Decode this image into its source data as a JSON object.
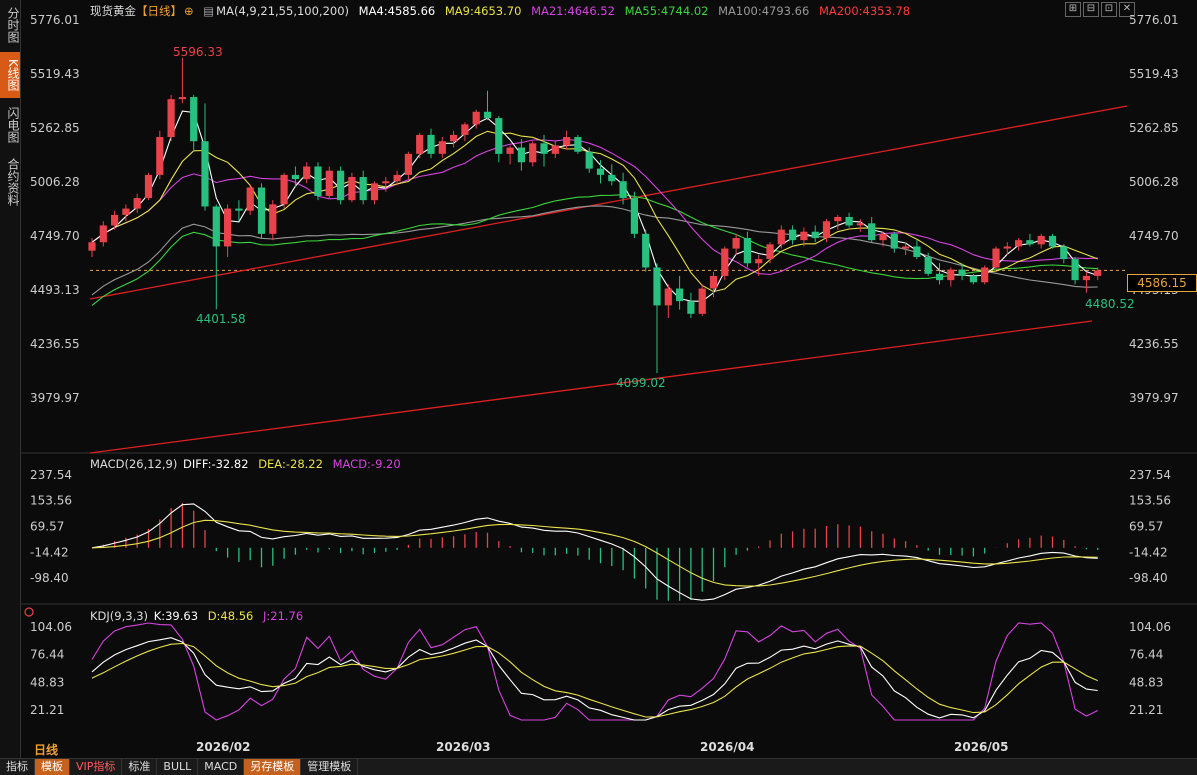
{
  "sidebar": {
    "tabs": [
      {
        "label": "分时图",
        "active": false
      },
      {
        "label": "K线图",
        "active": true
      },
      {
        "label": "闪电图",
        "active": false
      },
      {
        "label": "合约资料",
        "active": false
      }
    ]
  },
  "header": {
    "instrument": "现货黄金",
    "period_tag": "【日线】",
    "ma_label": "MA(4,9,21,55,100,200)",
    "ma4": "MA4:4585.66",
    "ma9": "MA9:4653.70",
    "ma21": "MA21:4646.52",
    "ma55": "MA55:4744.02",
    "ma100": "MA100:4793.66",
    "ma200": "MA200:4353.78"
  },
  "colors": {
    "up": "#e8424a",
    "down": "#27c07f",
    "ma4": "#ffffff",
    "ma9": "#e9e24b",
    "ma21": "#d643e0",
    "ma55": "#3bd43b",
    "ma100": "#999999",
    "ma200": "#ff3b3b",
    "accent": "#e8a53b"
  },
  "price_axis": {
    "left": [
      "5776.01",
      "5519.43",
      "5262.85",
      "5006.28",
      "4749.70",
      "4493.13",
      "4236.55",
      "3979.97"
    ],
    "right": [
      "5776.01",
      "5519.43",
      "5262.85",
      "5006.28",
      "4749.70",
      "4493.13",
      "4236.55",
      "3979.97"
    ],
    "current": "4586.15"
  },
  "annotations": {
    "high": "5596.33",
    "low1": "4401.58",
    "low2": "4099.02",
    "low3": "4480.52"
  },
  "macd": {
    "title": "MACD(26,12,9)",
    "diff": "DIFF:-32.82",
    "dea": "DEA:-28.22",
    "macd": "MACD:-9.20",
    "axis": [
      "237.54",
      "153.56",
      "69.57",
      "-14.42",
      "-98.40"
    ]
  },
  "kdj": {
    "title": "KDJ(9,3,3)",
    "k": "K:39.63",
    "d": "D:48.56",
    "j": "J:21.76",
    "axis": [
      "104.06",
      "76.44",
      "48.83",
      "21.21"
    ]
  },
  "x_axis": [
    "2026/02",
    "2026/03",
    "2026/04",
    "2026/05"
  ],
  "period_label": "日线",
  "toolbar": [
    "指标",
    "模板",
    "VIP指标",
    "标准",
    "BULL",
    "MACD",
    "另存模板",
    "管理模板"
  ],
  "window_controls": [
    "⊞",
    "⊟",
    "⊡",
    "✕"
  ],
  "chart_data": {
    "type": "candlestick",
    "candles": [
      [
        4680,
        4740,
        4650,
        4720
      ],
      [
        4720,
        4820,
        4700,
        4800
      ],
      [
        4800,
        4870,
        4780,
        4850
      ],
      [
        4850,
        4900,
        4820,
        4880
      ],
      [
        4880,
        4950,
        4860,
        4930
      ],
      [
        4930,
        5050,
        4920,
        5040
      ],
      [
        5040,
        5250,
        5020,
        5220
      ],
      [
        5220,
        5420,
        5200,
        5400
      ],
      [
        5400,
        5596.33,
        5380,
        5410
      ],
      [
        5410,
        5420,
        5150,
        5200
      ],
      [
        5200,
        5380,
        4870,
        4890
      ],
      [
        4890,
        4900,
        4401.58,
        4700
      ],
      [
        4700,
        4900,
        4650,
        4880
      ],
      [
        4880,
        4920,
        4820,
        4870
      ],
      [
        4870,
        4990,
        4850,
        4980
      ],
      [
        4980,
        5000,
        4740,
        4760
      ],
      [
        4760,
        4920,
        4730,
        4900
      ],
      [
        4900,
        5050,
        4880,
        5040
      ],
      [
        5040,
        5080,
        4980,
        5020
      ],
      [
        5020,
        5100,
        5000,
        5080
      ],
      [
        5080,
        5100,
        4920,
        4940
      ],
      [
        4940,
        5080,
        4930,
        5060
      ],
      [
        5060,
        5080,
        4900,
        4920
      ],
      [
        4920,
        5050,
        4910,
        5030
      ],
      [
        5030,
        5060,
        4900,
        4920
      ],
      [
        4920,
        5010,
        4900,
        5000
      ],
      [
        5000,
        5030,
        4960,
        5010
      ],
      [
        5010,
        5060,
        4990,
        5040
      ],
      [
        5040,
        5150,
        5020,
        5140
      ],
      [
        5140,
        5240,
        5120,
        5230
      ],
      [
        5230,
        5260,
        5120,
        5140
      ],
      [
        5140,
        5220,
        5120,
        5200
      ],
      [
        5200,
        5250,
        5170,
        5230
      ],
      [
        5230,
        5290,
        5200,
        5280
      ],
      [
        5280,
        5350,
        5260,
        5340
      ],
      [
        5340,
        5440,
        5300,
        5310
      ],
      [
        5310,
        5320,
        5100,
        5140
      ],
      [
        5140,
        5180,
        5090,
        5170
      ],
      [
        5170,
        5210,
        5060,
        5100
      ],
      [
        5100,
        5200,
        5080,
        5190
      ],
      [
        5190,
        5230,
        5080,
        5140
      ],
      [
        5140,
        5200,
        5120,
        5180
      ],
      [
        5180,
        5250,
        5160,
        5220
      ],
      [
        5220,
        5230,
        5140,
        5150
      ],
      [
        5150,
        5170,
        5050,
        5070
      ],
      [
        5070,
        5110,
        5000,
        5040
      ],
      [
        5040,
        5090,
        4990,
        5010
      ],
      [
        5010,
        5050,
        4900,
        4930
      ],
      [
        4930,
        4960,
        4740,
        4760
      ],
      [
        4760,
        4780,
        4580,
        4600
      ],
      [
        4600,
        4620,
        4099.02,
        4420
      ],
      [
        4420,
        4520,
        4360,
        4500
      ],
      [
        4500,
        4560,
        4400,
        4440
      ],
      [
        4440,
        4480,
        4360,
        4380
      ],
      [
        4380,
        4520,
        4370,
        4500
      ],
      [
        4500,
        4580,
        4460,
        4560
      ],
      [
        4560,
        4700,
        4540,
        4690
      ],
      [
        4690,
        4760,
        4660,
        4740
      ],
      [
        4740,
        4770,
        4600,
        4620
      ],
      [
        4620,
        4660,
        4560,
        4640
      ],
      [
        4640,
        4720,
        4620,
        4710
      ],
      [
        4710,
        4800,
        4690,
        4780
      ],
      [
        4780,
        4800,
        4710,
        4730
      ],
      [
        4730,
        4790,
        4700,
        4770
      ],
      [
        4770,
        4800,
        4720,
        4740
      ],
      [
        4740,
        4830,
        4720,
        4820
      ],
      [
        4820,
        4850,
        4780,
        4840
      ],
      [
        4840,
        4860,
        4790,
        4800
      ],
      [
        4800,
        4830,
        4770,
        4810
      ],
      [
        4810,
        4840,
        4720,
        4730
      ],
      [
        4730,
        4770,
        4700,
        4760
      ],
      [
        4760,
        4770,
        4670,
        4690
      ],
      [
        4690,
        4720,
        4660,
        4700
      ],
      [
        4700,
        4730,
        4640,
        4650
      ],
      [
        4650,
        4670,
        4560,
        4570
      ],
      [
        4570,
        4620,
        4520,
        4540
      ],
      [
        4540,
        4600,
        4510,
        4590
      ],
      [
        4590,
        4620,
        4540,
        4560
      ],
      [
        4560,
        4570,
        4520,
        4530
      ],
      [
        4530,
        4610,
        4520,
        4600
      ],
      [
        4600,
        4700,
        4590,
        4690
      ],
      [
        4690,
        4720,
        4660,
        4700
      ],
      [
        4700,
        4740,
        4680,
        4730
      ],
      [
        4730,
        4760,
        4700,
        4710
      ],
      [
        4710,
        4760,
        4690,
        4750
      ],
      [
        4750,
        4760,
        4690,
        4700
      ],
      [
        4700,
        4710,
        4620,
        4640
      ],
      [
        4640,
        4650,
        4520,
        4540
      ],
      [
        4540,
        4580,
        4480.52,
        4560
      ],
      [
        4560,
        4600,
        4540,
        4586.15
      ]
    ]
  }
}
